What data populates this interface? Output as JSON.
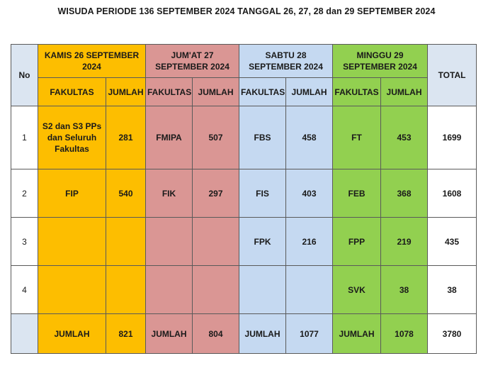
{
  "title": "WISUDA PERIODE 136 SEPTEMBER 2024 TANGGAL 26, 27, 28 dan 29 SEPTEMBER 2024",
  "header": {
    "no": "No",
    "total": "TOTAL",
    "days": [
      {
        "label": "KAMIS 26 SEPTEMBER 2024",
        "color": "#fdbe00"
      },
      {
        "label": "JUM'AT 27 SEPTEMBER 2024",
        "color": "#da9694"
      },
      {
        "label": "SABTU 28 SEPTEMBER 2024",
        "color": "#c5d9f1"
      },
      {
        "label": "MINGGU 29 SEPTEMBER 2024",
        "color": "#92d050"
      }
    ],
    "fakultas": "FAKULTAS",
    "jumlah": "JUMLAH"
  },
  "rows": [
    {
      "no": "1",
      "cells": [
        {
          "fak": "S2 dan S3 PPs dan Seluruh Fakultas",
          "jml": "281"
        },
        {
          "fak": "FMIPA",
          "jml": "507"
        },
        {
          "fak": "FBS",
          "jml": "458"
        },
        {
          "fak": "FT",
          "jml": "453"
        }
      ],
      "total": "1699"
    },
    {
      "no": "2",
      "cells": [
        {
          "fak": "FIP",
          "jml": "540"
        },
        {
          "fak": "FIK",
          "jml": "297"
        },
        {
          "fak": "FIS",
          "jml": "403"
        },
        {
          "fak": "FEB",
          "jml": "368"
        }
      ],
      "total": "1608"
    },
    {
      "no": "3",
      "cells": [
        {
          "fak": "",
          "jml": ""
        },
        {
          "fak": "",
          "jml": ""
        },
        {
          "fak": "FPK",
          "jml": "216"
        },
        {
          "fak": "FPP",
          "jml": "219"
        }
      ],
      "total": "435"
    },
    {
      "no": "4",
      "cells": [
        {
          "fak": "",
          "jml": ""
        },
        {
          "fak": "",
          "jml": ""
        },
        {
          "fak": "",
          "jml": ""
        },
        {
          "fak": "SVK",
          "jml": "38"
        }
      ],
      "total": "38"
    }
  ],
  "totals": {
    "no": "",
    "cells": [
      {
        "label": "JUMLAH",
        "value": "821"
      },
      {
        "label": "JUMLAH",
        "value": "804"
      },
      {
        "label": "JUMLAH",
        "value": "1077"
      },
      {
        "label": "JUMLAH",
        "value": "1078"
      }
    ],
    "grand_total": "3780"
  }
}
